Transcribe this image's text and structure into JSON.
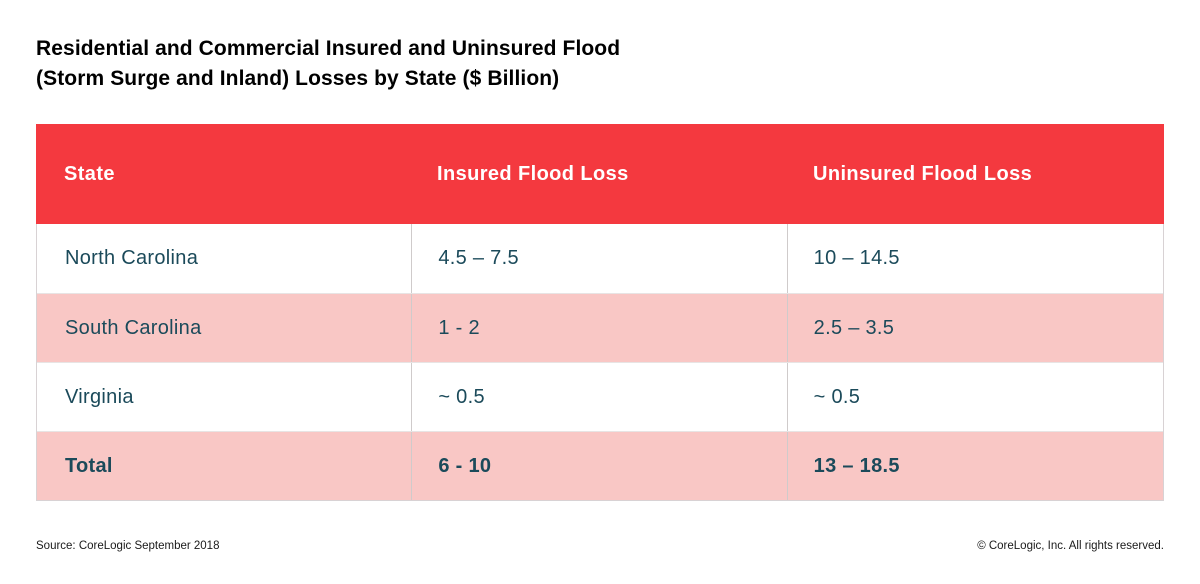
{
  "title": {
    "line1": "Residential and Commercial Insured and Uninsured Flood",
    "line2": "(Storm Surge and Inland) Losses by State ($ Billion)"
  },
  "table": {
    "columns": {
      "state": "State",
      "insured": "Insured Flood Loss",
      "uninsured": "Uninsured Flood Loss"
    },
    "rows": [
      {
        "state": "North Carolina",
        "insured": "4.5 – 7.5",
        "uninsured": "10 – 14.5"
      },
      {
        "state": "South Carolina",
        "insured": "1 - 2",
        "uninsured": "2.5 – 3.5"
      },
      {
        "state": "Virginia",
        "insured": "~ 0.5",
        "uninsured": "~ 0.5"
      },
      {
        "state": "Total",
        "insured": "6 - 10",
        "uninsured": "13 – 18.5"
      }
    ]
  },
  "footer": {
    "source": "Source: CoreLogic September 2018",
    "copyright": "© CoreLogic, Inc. All rights reserved."
  },
  "colors": {
    "header_red": "#f4393f",
    "row_pink": "#f9c7c5",
    "cell_text": "#1b4a5a",
    "title_text": "#000000",
    "divider": "#cfcbcb"
  },
  "chart_data": {
    "type": "table",
    "title": "Residential and Commercial Insured and Uninsured Flood (Storm Surge and Inland) Losses by State ($ Billion)",
    "columns": [
      "State",
      "Insured Flood Loss",
      "Uninsured Flood Loss"
    ],
    "rows": [
      [
        "North Carolina",
        "4.5 – 7.5",
        "10 – 14.5"
      ],
      [
        "South Carolina",
        "1 - 2",
        "2.5 – 3.5"
      ],
      [
        "Virginia",
        "~ 0.5",
        "~ 0.5"
      ],
      [
        "Total",
        "6 - 10",
        "13 – 18.5"
      ]
    ],
    "units": "$ Billion",
    "source": "CoreLogic September 2018",
    "insured_ranges_billion": [
      [
        4.5,
        7.5
      ],
      [
        1,
        2
      ],
      [
        0.5,
        0.5
      ],
      [
        6,
        10
      ]
    ],
    "uninsured_ranges_billion": [
      [
        10,
        14.5
      ],
      [
        2.5,
        3.5
      ],
      [
        0.5,
        0.5
      ],
      [
        13,
        18.5
      ]
    ]
  }
}
